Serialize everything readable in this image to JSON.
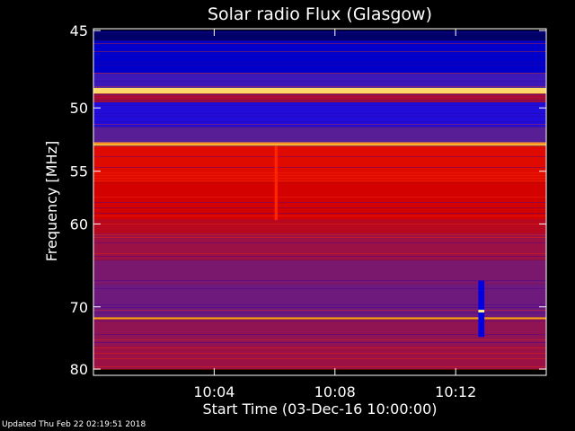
{
  "chart_data": {
    "type": "heatmap",
    "title": "Solar radio Flux (Glasgow)",
    "xlabel": "Start Time (03-Dec-16 10:00:00)",
    "ylabel": "Frequency [MHz]",
    "x_unit": "minutes after start",
    "xlim": [
      0,
      15
    ],
    "ylim": [
      45,
      80
    ],
    "y_scale": "reciprocal",
    "y_inverted": true,
    "x_ticks": [
      {
        "value": 4,
        "label": "10:04"
      },
      {
        "value": 8,
        "label": "10:08"
      },
      {
        "value": 12,
        "label": "10:12"
      }
    ],
    "y_ticks": [
      {
        "value": 45,
        "label": "45"
      },
      {
        "value": 50,
        "label": "50"
      },
      {
        "value": 55,
        "label": "55"
      },
      {
        "value": 60,
        "label": "60"
      },
      {
        "value": 70,
        "label": "70"
      },
      {
        "value": 80,
        "label": "80"
      }
    ],
    "colormap": [
      "#000050",
      "#0000ff",
      "#5020a0",
      "#a01040",
      "#d00000",
      "#ff2000",
      "#ff9000",
      "#ffffa0"
    ],
    "bands": [
      {
        "from": 45.0,
        "to": 45.6,
        "level": 0.02
      },
      {
        "from": 45.6,
        "to": 47.6,
        "level": 0.1
      },
      {
        "from": 47.6,
        "to": 48.6,
        "level": 0.25
      },
      {
        "from": 48.6,
        "to": 49.0,
        "level": 0.95
      },
      {
        "from": 49.0,
        "to": 49.6,
        "level": 0.45
      },
      {
        "from": 49.6,
        "to": 51.4,
        "level": 0.2
      },
      {
        "from": 51.4,
        "to": 52.6,
        "level": 0.3
      },
      {
        "from": 52.6,
        "to": 52.9,
        "level": 0.9
      },
      {
        "from": 52.9,
        "to": 56.0,
        "level": 0.62
      },
      {
        "from": 56.0,
        "to": 59.5,
        "level": 0.58
      },
      {
        "from": 59.5,
        "to": 61.0,
        "level": 0.5
      },
      {
        "from": 61.0,
        "to": 64.0,
        "level": 0.42
      },
      {
        "from": 64.0,
        "to": 67.0,
        "level": 0.36
      },
      {
        "from": 67.0,
        "to": 71.5,
        "level": 0.34
      },
      {
        "from": 71.5,
        "to": 71.8,
        "level": 0.88
      },
      {
        "from": 71.8,
        "to": 76.0,
        "level": 0.4
      },
      {
        "from": 76.0,
        "to": 80.0,
        "level": 0.42
      }
    ],
    "events": [
      {
        "t_from": 6.0,
        "t_to": 6.1,
        "f_from": 52.9,
        "f_to": 59.6,
        "level": 0.72
      },
      {
        "t_from": 12.75,
        "t_to": 12.95,
        "f_from": 66.5,
        "f_to": 74.5,
        "level": 0.12
      },
      {
        "t_from": 12.75,
        "t_to": 12.95,
        "f_from": 70.4,
        "f_to": 70.8,
        "level": 0.98
      }
    ]
  },
  "footer": {
    "updated_text": "Updated Thu Feb 22 02:19:51 2018"
  }
}
